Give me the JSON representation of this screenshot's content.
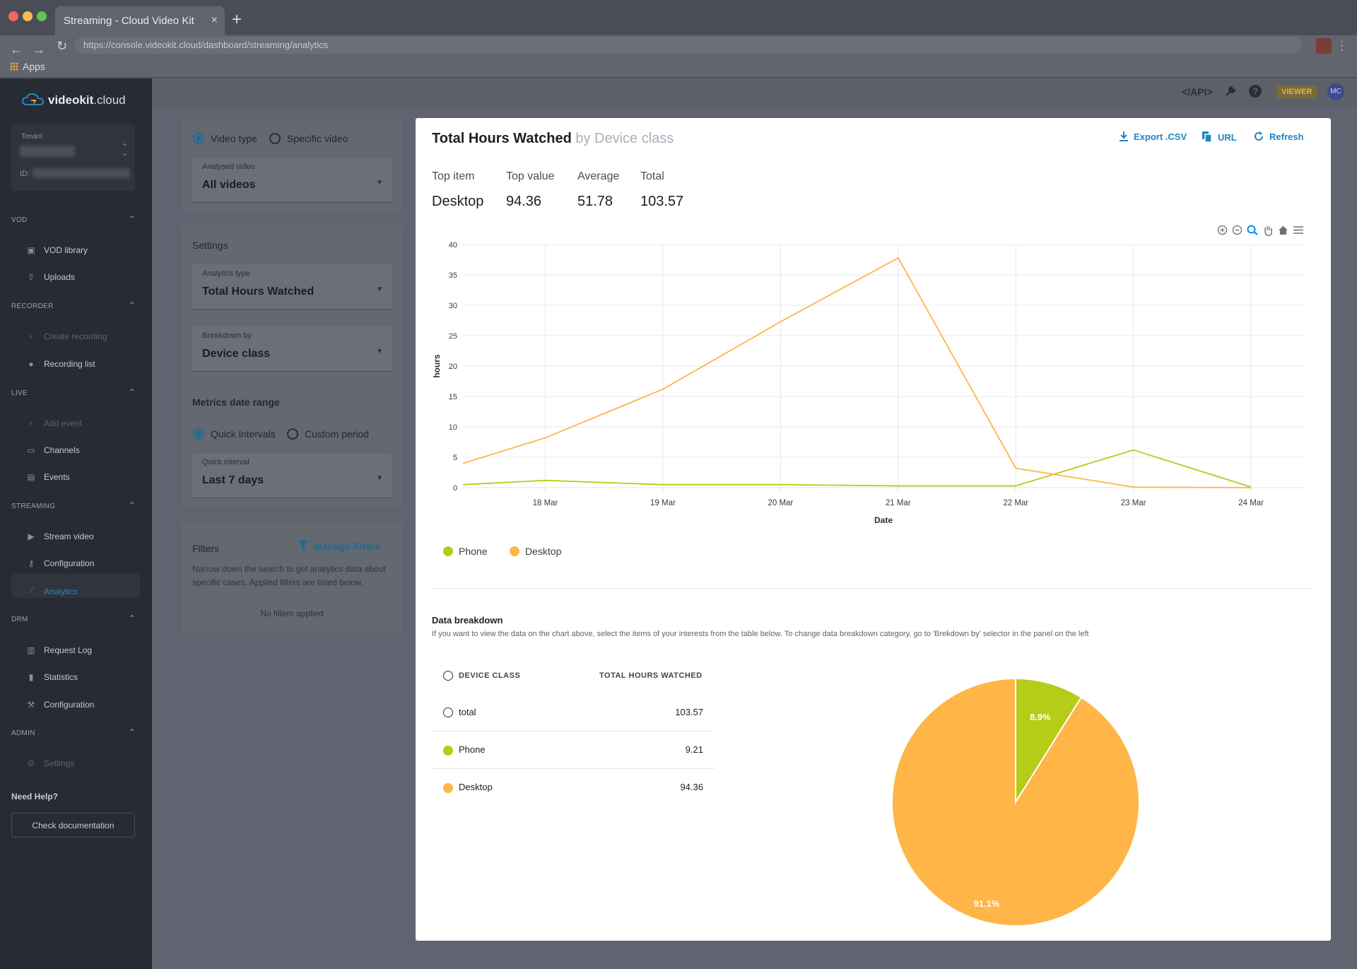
{
  "browser": {
    "tab_title": "Streaming - Cloud Video Kit",
    "tab_close": "×",
    "new_tab": "+",
    "url": "https://console.videokit.cloud/dashboard/streaming/analytics",
    "apps_label": "Apps",
    "back": "←",
    "forward": "→",
    "reload": "↻",
    "colors": {
      "close": "#ed6a5e",
      "minimize": "#f5bf4f",
      "maximize": "#61c554"
    }
  },
  "sidebar": {
    "logo_bold": "videokit",
    "logo_rest": ".cloud",
    "tenant_label": "Tenant",
    "tenant_id_label": "ID:",
    "sections": [
      {
        "title": "VOD",
        "items": [
          {
            "label": "VOD library",
            "icon": "library-icon"
          },
          {
            "label": "Uploads",
            "icon": "upload-icon"
          }
        ]
      },
      {
        "title": "RECORDER",
        "items": [
          {
            "label": "Create recording",
            "icon": "plus-icon"
          },
          {
            "label": "Recording list",
            "icon": "record-icon"
          }
        ]
      },
      {
        "title": "LIVE",
        "items": [
          {
            "label": "Add event",
            "icon": "plus-icon"
          },
          {
            "label": "Channels",
            "icon": "monitor-icon"
          },
          {
            "label": "Events",
            "icon": "calendar-icon"
          }
        ]
      },
      {
        "title": "STREAMING",
        "items": [
          {
            "label": "Stream video",
            "icon": "play-icon"
          },
          {
            "label": "Configuration",
            "icon": "key-icon"
          },
          {
            "label": "Analytics",
            "icon": "chart-line-icon"
          }
        ]
      },
      {
        "title": "DRM",
        "items": [
          {
            "label": "Request Log",
            "icon": "log-icon"
          },
          {
            "label": "Statistics",
            "icon": "bar-chart-icon"
          },
          {
            "label": "Configuration",
            "icon": "wrench-icon"
          }
        ]
      },
      {
        "title": "ADMIN",
        "items": [
          {
            "label": "Settings",
            "icon": "gear-icon"
          }
        ]
      }
    ],
    "help_title": "Need Help?",
    "doc_button": "Check documentation"
  },
  "header": {
    "api": "</API>",
    "viewer_badge": "VIEWER",
    "avatar": "MC"
  },
  "left_panel": {
    "video_type": "Video type",
    "specific_video": "Specific video",
    "analysed_video_label": "Analysed video",
    "analysed_video_value": "All videos",
    "settings_title": "Settings",
    "analytics_type_label": "Analytics type",
    "analytics_type_value": "Total Hours Watched",
    "breakdown_label": "Breakdown by",
    "breakdown_value": "Device class",
    "metrics_title": "Metrics date range",
    "quick_intervals": "Quick intervals",
    "custom_period": "Custom period",
    "quick_interval_label": "Quick interval",
    "quick_interval_value": "Last 7 days",
    "filters_title": "Filters",
    "manage_filters": "Manage filters",
    "filters_desc": "Narrow down the search to get analytics data about specific cases. Applied filters are listed below.",
    "no_filters": "No filters applied"
  },
  "card": {
    "title": "Total Hours Watched",
    "title_suffix": "by Device class",
    "actions": {
      "export": "Export .CSV",
      "url": "URL",
      "refresh": "Refresh"
    },
    "stats": {
      "top_item_label": "Top item",
      "top_item": "Desktop",
      "top_value_label": "Top value",
      "top_value": "94.36",
      "average_label": "Average",
      "average": "51.78",
      "total_label": "Total",
      "total": "103.57"
    },
    "breakdown_title": "Data breakdown",
    "breakdown_desc": "If you want to view the data on the chart above, select the items of your interests from the table below. To change data breakdown category, go to 'Brekdown by' selector in the panel on the left",
    "table": {
      "col1": "DEVICE CLASS",
      "col2": "TOTAL HOURS WATCHED",
      "rows": [
        {
          "name": "total",
          "value": "103.57",
          "color": ""
        },
        {
          "name": "Phone",
          "value": "9.21",
          "color": "#b5cc18"
        },
        {
          "name": "Desktop",
          "value": "94.36",
          "color": "#ffb547"
        }
      ]
    }
  },
  "chart_data": [
    {
      "type": "line",
      "title": "",
      "xlabel": "Date",
      "ylabel": "hours",
      "categories": [
        "18 Mar",
        "19 Mar",
        "20 Mar",
        "21 Mar",
        "22 Mar",
        "23 Mar",
        "24 Mar"
      ],
      "ylim": [
        0,
        40
      ],
      "yticks": [
        0,
        5,
        10,
        15,
        20,
        25,
        30,
        35,
        40
      ],
      "x_range": [
        17.3,
        24.45
      ],
      "series": [
        {
          "name": "Phone",
          "color": "#b5cc18",
          "x": [
            17.3,
            18,
            19,
            20,
            21,
            22,
            23,
            24
          ],
          "values": [
            0.5,
            1.2,
            0.5,
            0.5,
            0.3,
            0.3,
            6.2,
            0.1
          ]
        },
        {
          "name": "Desktop",
          "color": "#ffb547",
          "x": [
            17.3,
            18,
            19,
            20,
            21,
            22,
            23,
            24
          ],
          "values": [
            4.0,
            8.2,
            16.2,
            27.3,
            37.8,
            3.2,
            0.1,
            0.0
          ]
        }
      ],
      "legend": "bottom-left",
      "grid": true
    },
    {
      "type": "pie",
      "labels": [
        "Phone",
        "Desktop"
      ],
      "values": [
        8.9,
        91.1
      ],
      "value_labels": [
        "8.9%",
        "91.1%"
      ],
      "colors": [
        "#b5cc18",
        "#ffb547"
      ]
    }
  ]
}
